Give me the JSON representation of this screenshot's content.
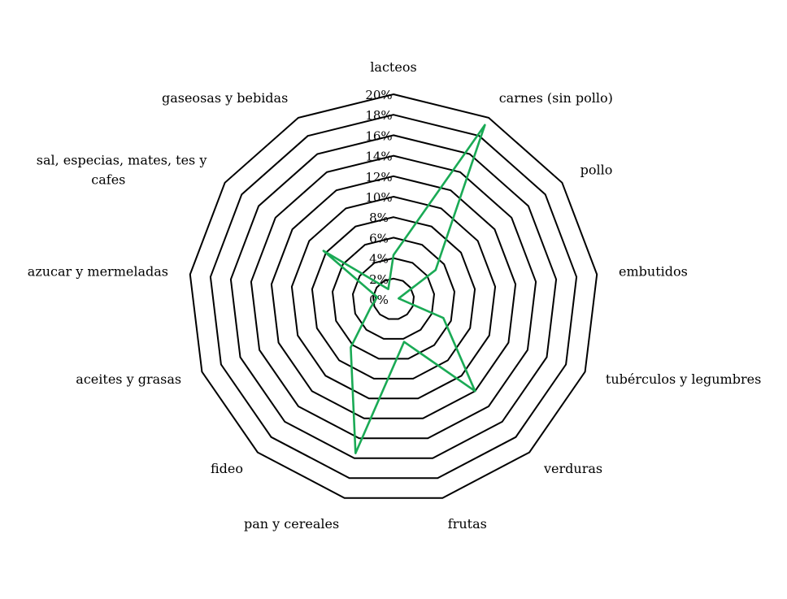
{
  "chart_data": {
    "type": "radar",
    "title": "",
    "categories": [
      "lacteos",
      "carnes (sin pollo)",
      "pollo",
      "embutidos",
      "tubérculos y legumbres",
      "verduras",
      "frutas",
      "pan y cereales",
      "fideo",
      "aceites y grasas",
      "azucar y mermeladas",
      "sal, especias, mates, tes y cafes",
      "gaseosas y bebidas"
    ],
    "category_lines": [
      [
        "lacteos"
      ],
      [
        "carnes (sin pollo)"
      ],
      [
        "pollo"
      ],
      [
        "embutidos"
      ],
      [
        "tubérculos y legumbres"
      ],
      [
        "verduras"
      ],
      [
        "frutas"
      ],
      [
        "pan y cereales"
      ],
      [
        "fideo"
      ],
      [
        "aceites y grasas"
      ],
      [
        "azucar y mermeladas"
      ],
      [
        "sal, especias, mates, tes y",
        "cafes"
      ],
      [
        "gaseosas y bebidas"
      ]
    ],
    "r_ticks": [
      0,
      2,
      4,
      6,
      8,
      10,
      12,
      14,
      16,
      18,
      20
    ],
    "r_tick_labels": [
      "0%",
      "2%",
      "4%",
      "6%",
      "8%",
      "10%",
      "12%",
      "14%",
      "16%",
      "18%",
      "20%"
    ],
    "rlim": [
      0,
      20
    ],
    "grid": true,
    "series": [
      {
        "color": "#1aaa55",
        "values": [
          4.3,
          19.2,
          5.0,
          0.5,
          5.2,
          12.0,
          4.3,
          15.5,
          6.3,
          2.4,
          1.6,
          8.3,
          1.1
        ]
      }
    ]
  }
}
